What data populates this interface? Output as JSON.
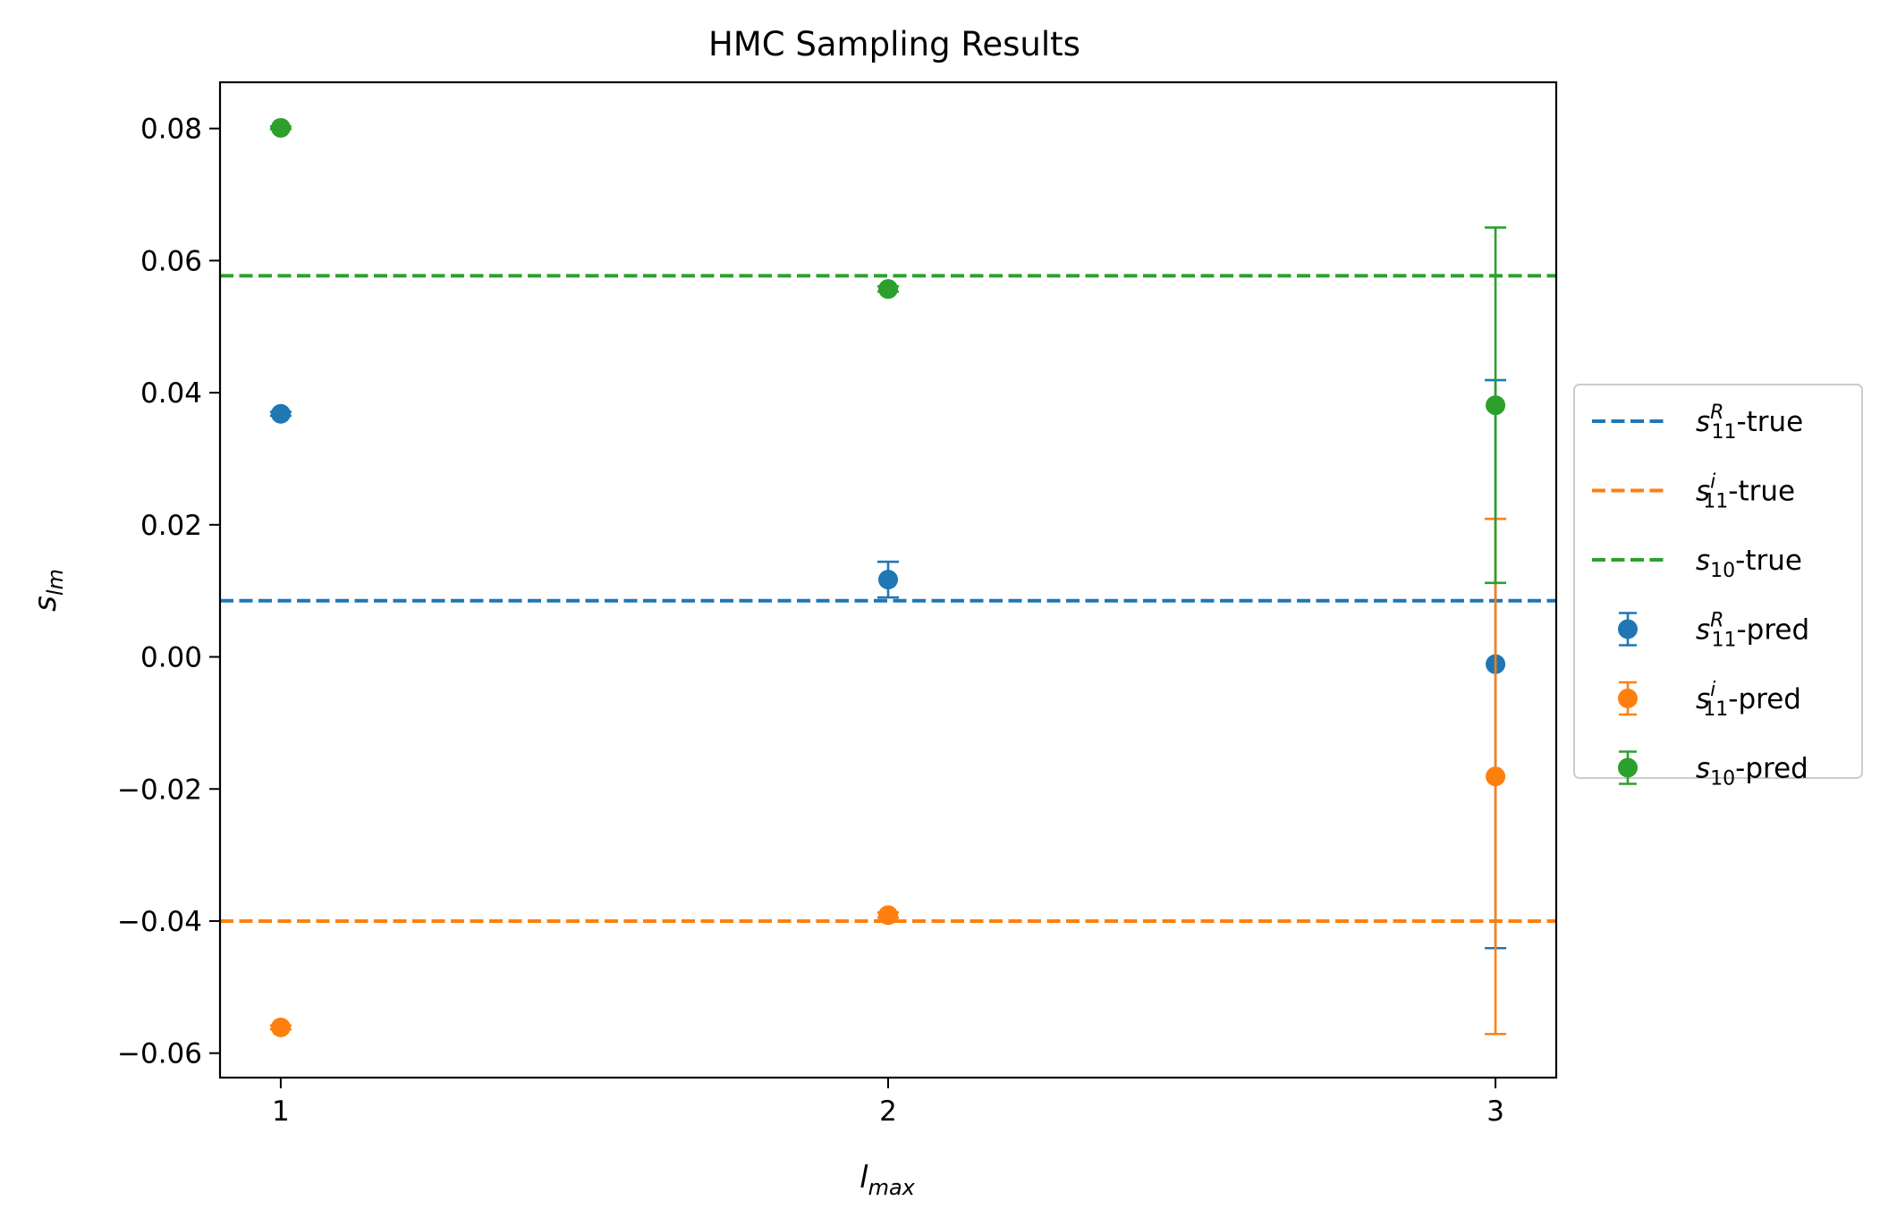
{
  "chart_data": {
    "type": "scatter",
    "title": "HMC Sampling Results",
    "xlabel": "l_max",
    "ylabel": "s_lm",
    "xlim": [
      0.9,
      3.1
    ],
    "ylim": [
      -0.0637,
      0.087
    ],
    "x_ticks": [
      1,
      2,
      3
    ],
    "y_ticks": [
      -0.06,
      -0.04,
      -0.02,
      0.0,
      0.02,
      0.04,
      0.06,
      0.08
    ],
    "y_tick_labels": [
      "−0.06",
      "−0.04",
      "−0.02",
      "0.00",
      "0.02",
      "0.04",
      "0.06",
      "0.08"
    ],
    "grid": false,
    "legend_position": "center-right-outside",
    "true_lines": [
      {
        "name": "s11R-true",
        "label_main": "s",
        "label_sub": "11",
        "label_sup": "R",
        "label_suffix": "-true",
        "color": "#1f77b4",
        "y": 0.0085
      },
      {
        "name": "s11i-true",
        "label_main": "s",
        "label_sub": "11",
        "label_sup": "i",
        "label_suffix": "-true",
        "color": "#ff7f0e",
        "y": -0.04
      },
      {
        "name": "s10-true",
        "label_main": "s",
        "label_sub": "10",
        "label_sup": "",
        "label_suffix": "-true",
        "color": "#2ca02c",
        "y": 0.0577
      }
    ],
    "series": [
      {
        "name": "s11R-pred",
        "label_main": "s",
        "label_sub": "11",
        "label_sup": "R",
        "label_suffix": "-pred",
        "color": "#1f77b4",
        "x": [
          1,
          2,
          3
        ],
        "y": [
          0.0368,
          0.0117,
          -0.0011
        ],
        "yerr": [
          0.0003,
          0.0027,
          0.043
        ]
      },
      {
        "name": "s11i-pred",
        "label_main": "s",
        "label_sub": "11",
        "label_sup": "i",
        "label_suffix": "-pred",
        "color": "#ff7f0e",
        "x": [
          1,
          2,
          3
        ],
        "y": [
          -0.0561,
          -0.0391,
          -0.0181
        ],
        "yerr": [
          0.0003,
          0.0004,
          0.039
        ]
      },
      {
        "name": "s10-pred",
        "label_main": "s",
        "label_sub": "10",
        "label_sup": "",
        "label_suffix": "-pred",
        "color": "#2ca02c",
        "x": [
          1,
          2,
          3
        ],
        "y": [
          0.0801,
          0.0557,
          0.0381
        ],
        "yerr": [
          0.0002,
          0.0004,
          0.0269
        ]
      }
    ]
  }
}
